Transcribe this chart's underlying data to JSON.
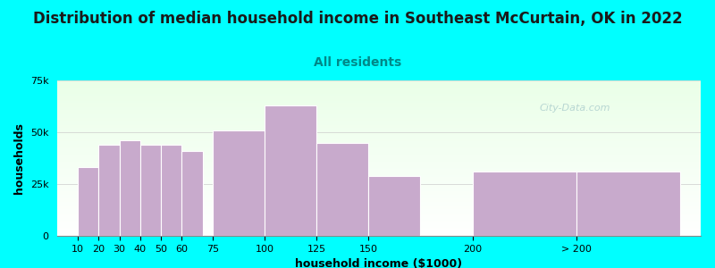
{
  "title": "Distribution of median household income in Southeast McCurtain, OK in 2022",
  "subtitle": "All residents",
  "xlabel": "household income ($1000)",
  "ylabel": "households",
  "bar_color": "#C8AACC",
  "background_outer": "#00FFFF",
  "background_inner_top": "#EAFFE8",
  "background_inner_bottom": "#FFFFFF",
  "categories": [
    "10",
    "20",
    "30",
    "40",
    "50",
    "60",
    "75",
    "100",
    "125",
    "150",
    "200",
    "> 200"
  ],
  "values": [
    33000,
    44000,
    46000,
    44000,
    44000,
    41000,
    51000,
    63000,
    45000,
    29000,
    31000,
    31000
  ],
  "left_edges": [
    10,
    20,
    30,
    40,
    50,
    60,
    75,
    100,
    125,
    150,
    200,
    250
  ],
  "widths": [
    10,
    10,
    10,
    10,
    10,
    10,
    25,
    25,
    25,
    25,
    50,
    50
  ],
  "ylim": [
    0,
    75000
  ],
  "yticks": [
    0,
    25000,
    50000,
    75000
  ],
  "xlim_left": 0,
  "xlim_right": 310,
  "watermark": "City-Data.com",
  "title_fontsize": 12,
  "subtitle_fontsize": 10,
  "axis_label_fontsize": 9,
  "tick_fontsize": 8
}
